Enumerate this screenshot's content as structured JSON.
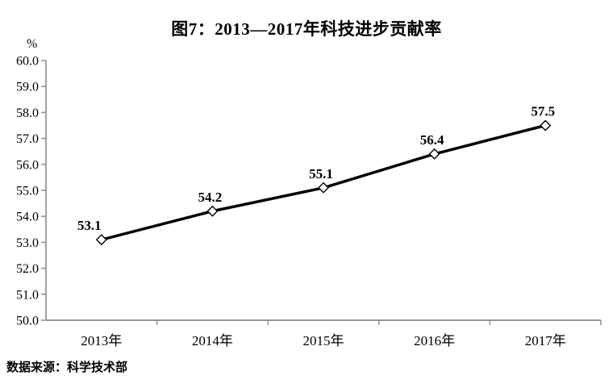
{
  "chart_data": {
    "type": "line",
    "title": "图7：2013—2017年科技进步贡献率",
    "ylabel": "%",
    "xlabel": "",
    "categories": [
      "2013年",
      "2014年",
      "2015年",
      "2016年",
      "2017年"
    ],
    "values": [
      53.1,
      54.2,
      55.1,
      56.4,
      57.5
    ],
    "data_labels": [
      "53.1",
      "54.2",
      "55.1",
      "56.4",
      "57.5"
    ],
    "ylim": [
      50.0,
      60.0
    ],
    "ytick_step": 1.0,
    "ytick_labels": [
      "60.0",
      "59.0",
      "58.0",
      "57.0",
      "56.0",
      "55.0",
      "54.0",
      "53.0",
      "52.0",
      "51.0",
      "50.0"
    ],
    "grid": false,
    "legend": "none",
    "marker": "open-diamond",
    "colors": {
      "line": "#000000",
      "marker_fill": "#ffffff",
      "marker_stroke": "#000000",
      "axis": "#8a8a8a",
      "text": "#000000"
    }
  },
  "source": {
    "text": "数据来源：科学技术部"
  }
}
